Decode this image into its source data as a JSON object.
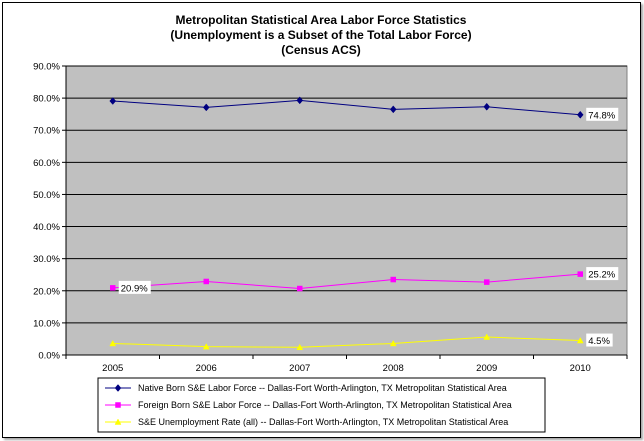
{
  "chart_data": {
    "type": "line",
    "title": [
      "Metropolitan Statistical Area Labor Force Statistics",
      "(Unemployment is a Subset of the Total Labor Force)",
      "(Census ACS)"
    ],
    "categories": [
      "2005",
      "2006",
      "2007",
      "2008",
      "2009",
      "2010"
    ],
    "ylim": [
      0,
      90
    ],
    "yticks": [
      0,
      10,
      20,
      30,
      40,
      50,
      60,
      70,
      80,
      90
    ],
    "ytick_labels": [
      "0.0%",
      "10.0%",
      "20.0%",
      "30.0%",
      "40.0%",
      "50.0%",
      "60.0%",
      "70.0%",
      "80.0%",
      "90.0%"
    ],
    "grid": true,
    "plot_background": "#c0c0c0",
    "legend_position": "bottom",
    "series": [
      {
        "name": "Native Born S&E Labor Force -- Dallas-Fort Worth-Arlington, TX Metropolitan Statistical Area",
        "values": [
          79.1,
          77.1,
          79.3,
          76.5,
          77.3,
          74.8
        ],
        "color": "#000080",
        "marker": "diamond",
        "data_labels": [
          {
            "index": 5,
            "text": "74.8%"
          }
        ]
      },
      {
        "name": "Foreign Born S&E Labor Force -- Dallas-Fort Worth-Arlington, TX Metropolitan Statistical Area",
        "values": [
          20.9,
          22.9,
          20.7,
          23.5,
          22.7,
          25.2
        ],
        "color": "#ff00ff",
        "marker": "square",
        "data_labels": [
          {
            "index": 0,
            "text": "20.9%"
          },
          {
            "index": 5,
            "text": "25.2%"
          }
        ]
      },
      {
        "name": "S&E Unemployment Rate (all) -- Dallas-Fort Worth-Arlington, TX Metropolitan Statistical Area",
        "values": [
          3.6,
          2.6,
          2.4,
          3.6,
          5.6,
          4.5
        ],
        "color": "#ffff00",
        "marker": "triangle",
        "data_labels": [
          {
            "index": 5,
            "text": "4.5%"
          }
        ]
      }
    ]
  }
}
